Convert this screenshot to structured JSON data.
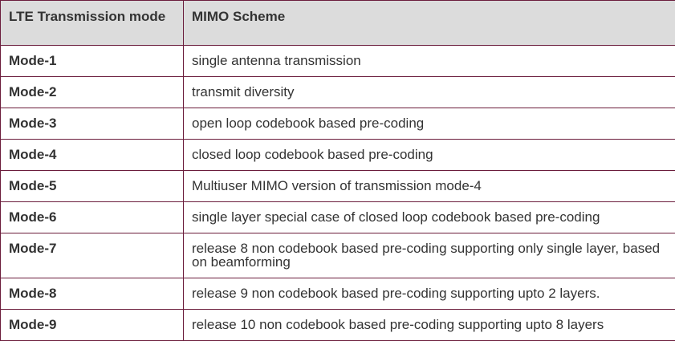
{
  "table": {
    "headers": [
      "LTE Transmission mode",
      "MIMO Scheme"
    ],
    "rows": [
      {
        "mode": "Mode-1",
        "scheme": "single antenna transmission"
      },
      {
        "mode": "Mode-2",
        "scheme": "transmit diversity"
      },
      {
        "mode": "Mode-3",
        "scheme": "open loop codebook based pre-coding"
      },
      {
        "mode": "Mode-4",
        "scheme": "closed loop codebook based pre-coding"
      },
      {
        "mode": "Mode-5",
        "scheme": "Multiuser MIMO version of transmission mode-4"
      },
      {
        "mode": "Mode-6",
        "scheme": "single layer special case of closed loop codebook based pre-coding"
      },
      {
        "mode": "Mode-7",
        "scheme": "release 8 non codebook based pre-coding supporting only single layer, based on beamforming"
      },
      {
        "mode": "Mode-8",
        "scheme": "release 9 non codebook based pre-coding supporting upto 2 layers."
      },
      {
        "mode": "Mode-9",
        "scheme": "release 10 non codebook based pre-coding supporting upto 8 layers"
      }
    ]
  },
  "colors": {
    "border": "#6b1d3c",
    "header_bg": "#dcdcdc",
    "text": "#333333"
  }
}
